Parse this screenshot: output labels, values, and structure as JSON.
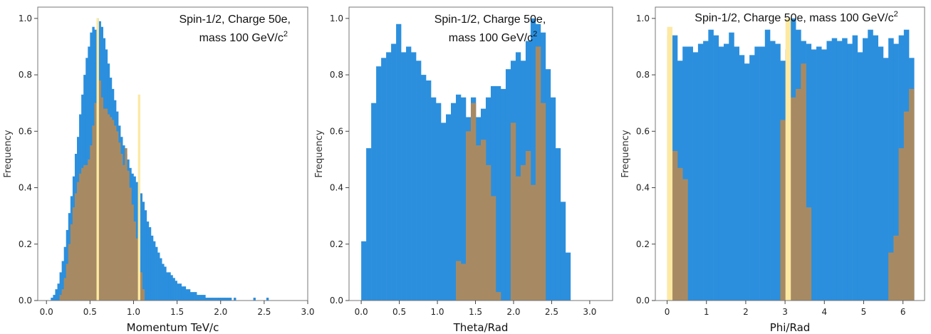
{
  "colors": {
    "series_a": "#2b8fde",
    "series_b": "#a78a63",
    "series_c": "#fde9a3"
  },
  "chart_data": [
    {
      "type": "bar",
      "annotation_lines": [
        "Spin-1/2, Charge 50e,",
        "mass 100 GeV/c"
      ],
      "annotation_sup": "2",
      "xlabel": "Momentum  TeV/c",
      "ylabel": "Frequency",
      "xlim": [
        -0.1,
        3.0
      ],
      "ylim": [
        0,
        1.04
      ],
      "xticks": [
        "0.0",
        "0.5",
        "1.0",
        "1.5",
        "2.0",
        "2.5",
        "3.0"
      ],
      "yticks": [
        "0.0",
        "0.2",
        "0.4",
        "0.6",
        "0.8",
        "1.0"
      ],
      "bin_width": 0.025,
      "series": [
        {
          "color_key": "series_a",
          "x_start": 0.05,
          "values": [
            0.01,
            0.02,
            0.04,
            0.06,
            0.1,
            0.14,
            0.19,
            0.25,
            0.31,
            0.37,
            0.44,
            0.52,
            0.58,
            0.66,
            0.73,
            0.8,
            0.86,
            0.9,
            0.95,
            0.97,
            0.96,
            1.0,
            0.99,
            0.97,
            0.93,
            0.89,
            0.84,
            0.79,
            0.75,
            0.71,
            0.67,
            0.62,
            0.58,
            0.55,
            0.52,
            0.5,
            0.47,
            0.45,
            0.44,
            0.42,
            0.4,
            0.38,
            0.35,
            0.32,
            0.28,
            0.26,
            0.23,
            0.21,
            0.19,
            0.17,
            0.15,
            0.13,
            0.12,
            0.1,
            0.1,
            0.09,
            0.08,
            0.07,
            0.06,
            0.06,
            0.05,
            0.05,
            0.04,
            0.04,
            0.03,
            0.03,
            0.03,
            0.02,
            0.02,
            0.02,
            0.02,
            0.01,
            0.01,
            0.01,
            0.01,
            0.01,
            0.01,
            0.01,
            0.01,
            0.01,
            0.01,
            0.01,
            0.01,
            0.0,
            0.01,
            0.0,
            0.0,
            0.0,
            0.0,
            0.0,
            0.0,
            0.0,
            0.0,
            0.01,
            0.0,
            0.0,
            0.0,
            0.0,
            0.0,
            0.01
          ]
        },
        {
          "color_key": "series_b",
          "x_start": 0.15,
          "values": [
            0.02,
            0.04,
            0.08,
            0.13,
            0.2,
            0.27,
            0.33,
            0.38,
            0.42,
            0.45,
            0.47,
            0.48,
            0.48,
            0.5,
            0.55,
            0.62,
            0.7,
            0.98,
            0.78,
            0.72,
            0.68,
            0.68,
            0.66,
            0.65,
            0.64,
            0.62,
            0.6,
            0.56,
            0.52,
            0.48,
            0.54,
            0.46,
            0.4,
            0.34,
            0.28,
            0.22,
            0.16,
            0.1,
            0.04
          ]
        },
        {
          "color_key": "series_c",
          "x_start": 0.575,
          "values": [
            1.0,
            0.0,
            0.0,
            0.0,
            0.0,
            0.0,
            0.0,
            0.0,
            0.0,
            0.0,
            0.0,
            0.0,
            0.0,
            0.0,
            0.0,
            0.0,
            0.0,
            0.0,
            0.0,
            0.73
          ]
        }
      ]
    },
    {
      "type": "bar",
      "annotation_lines": [
        "Spin-1/2, Charge 50e,",
        "mass 100 GeV/c"
      ],
      "annotation_sup": "2",
      "xlabel": "Theta/Rad",
      "ylabel": "Frequency",
      "xlim": [
        -0.16,
        3.3
      ],
      "ylim": [
        0,
        1.04
      ],
      "xticks": [
        "0.0",
        "0.5",
        "1.0",
        "1.5",
        "2.0",
        "2.5",
        "3.0"
      ],
      "yticks": [
        "0.0",
        "0.2",
        "0.4",
        "0.6",
        "0.8",
        "1.0"
      ],
      "bin_width": 0.0654,
      "series": [
        {
          "color_key": "series_a",
          "x_start": 0.0,
          "values": [
            0.21,
            0.54,
            0.7,
            0.83,
            0.86,
            0.88,
            0.91,
            0.98,
            0.88,
            0.9,
            0.88,
            0.85,
            0.8,
            0.78,
            0.72,
            0.7,
            0.63,
            0.66,
            0.7,
            0.73,
            0.72,
            0.65,
            0.72,
            0.65,
            0.68,
            0.72,
            0.76,
            0.76,
            0.75,
            0.82,
            0.85,
            0.88,
            0.85,
            0.92,
            1.0,
            0.98,
            0.95,
            0.82,
            0.72,
            0.54,
            0.35,
            0.17,
            0.0,
            0.0,
            0.0,
            0.0,
            0.0,
            0.0
          ]
        },
        {
          "color_key": "series_b",
          "x_start": 0.0,
          "values": [
            0,
            0,
            0,
            0,
            0,
            0,
            0,
            0,
            0,
            0,
            0,
            0,
            0,
            0,
            0,
            0,
            0,
            0,
            0,
            0.14,
            0.13,
            0.6,
            0.7,
            0.55,
            0.57,
            0.48,
            0.37,
            0.03,
            0.0,
            0.0,
            0.63,
            0.44,
            0.48,
            0.53,
            0.41,
            0.9,
            0.7,
            0.0,
            0.0,
            0.0,
            0.0,
            0.0,
            0,
            0,
            0,
            0,
            0,
            0
          ]
        }
      ]
    },
    {
      "type": "bar",
      "annotation_lines": [
        "Spin-1/2, Charge 50e, mass 100 GeV/c"
      ],
      "annotation_sup": "2",
      "xlabel": "Phi/Rad",
      "ylabel": "Frequency",
      "xlim": [
        -0.3,
        6.55
      ],
      "ylim": [
        0,
        1.04
      ],
      "xticks": [
        "0",
        "1",
        "2",
        "3",
        "4",
        "5",
        "6"
      ],
      "yticks": [
        "0.0",
        "0.2",
        "0.4",
        "0.6",
        "0.8",
        "1.0"
      ],
      "bin_width": 0.1309,
      "series": [
        {
          "color_key": "series_a",
          "x_start": 0.0,
          "values": [
            0.94,
            0.94,
            0.85,
            0.9,
            0.9,
            0.88,
            0.91,
            0.92,
            0.96,
            0.94,
            0.9,
            0.91,
            0.95,
            0.9,
            0.87,
            0.84,
            0.87,
            0.9,
            0.9,
            0.96,
            0.92,
            0.91,
            0.85,
            0.89,
            1.0,
            0.96,
            0.92,
            0.91,
            0.89,
            0.9,
            0.89,
            0.92,
            0.93,
            0.92,
            0.93,
            0.91,
            0.94,
            0.88,
            0.93,
            0.96,
            0.94,
            0.9,
            0.86,
            0.93,
            0.91,
            0.94,
            0.96,
            0.86
          ]
        },
        {
          "color_key": "series_b",
          "x_start": 0.0,
          "values": [
            0.93,
            0.53,
            0.47,
            0.43,
            0.0,
            0.0,
            0.0,
            0.0,
            0.0,
            0.0,
            0.0,
            0.0,
            0.0,
            0.0,
            0.0,
            0.0,
            0.0,
            0.0,
            0.0,
            0.0,
            0.0,
            0.0,
            0.64,
            0.89,
            0.72,
            0.75,
            0.84,
            0.33,
            0.0,
            0.0,
            0.0,
            0.0,
            0.0,
            0.0,
            0.0,
            0.0,
            0.0,
            0.0,
            0.0,
            0.0,
            0.0,
            0.0,
            0.0,
            0.17,
            0.23,
            0.54,
            0.67,
            0.75
          ]
        },
        {
          "color_key": "series_c",
          "x_start": 0.0,
          "values": [
            0.97,
            0.0,
            0.0,
            0.0,
            0.0,
            0.0,
            0.0,
            0.0,
            0.0,
            0.0,
            0.0,
            0.0,
            0.0,
            0.0,
            0.0,
            0.0,
            0.0,
            0.0,
            0.0,
            0.0,
            0.0,
            0.0,
            0.0,
            1.0,
            0.0,
            0.0,
            0.0,
            0.0,
            0.0,
            0.0,
            0.0,
            0.0,
            0.0,
            0.0,
            0.0,
            0.0,
            0.0,
            0.0,
            0.0,
            0.0,
            0.0,
            0.0,
            0.0,
            0.0,
            0.0,
            0.0,
            0.0,
            0.0
          ]
        }
      ]
    }
  ]
}
